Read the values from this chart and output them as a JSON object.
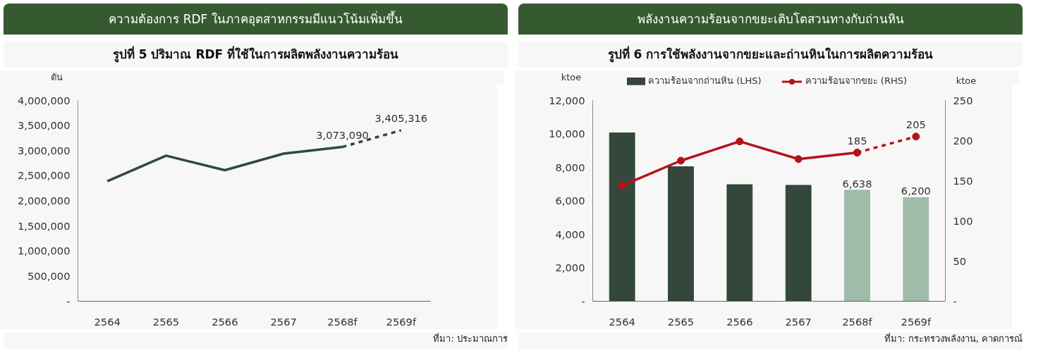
{
  "chart_data": [
    {
      "type": "line",
      "title": "ความต้องการ RDF ในภาคอุตสาหกรรมมีแนวโน้มเพิ่มขึ้น",
      "subtitle": "รูปที่ 5 ปริมาณ RDF ที่ใช้ในการผลิตพลังงานความร้อน",
      "ylabel": "ตัน",
      "categories": [
        "2564",
        "2565",
        "2566",
        "2567",
        "2568f",
        "2569f"
      ],
      "ylim": [
        0,
        4000000
      ],
      "yticks": [
        {
          "value": 0,
          "label": "-"
        },
        {
          "value": 500000,
          "label": "500,000"
        },
        {
          "value": 1000000,
          "label": "1,000,000"
        },
        {
          "value": 1500000,
          "label": "1,500,000"
        },
        {
          "value": 2000000,
          "label": "2,000,000"
        },
        {
          "value": 2500000,
          "label": "2,500,000"
        },
        {
          "value": 3000000,
          "label": "3,000,000"
        },
        {
          "value": 3500000,
          "label": "3,500,000"
        },
        {
          "value": 4000000,
          "label": "4,000,000"
        }
      ],
      "series": [
        {
          "color": "#2f4a3a",
          "line_style": "solid",
          "values": [
            2390000,
            2900000,
            2610000,
            2940000,
            3073090,
            null
          ]
        },
        {
          "color": "#2f4a3a",
          "line_style": "dashed",
          "values": [
            null,
            null,
            null,
            null,
            3073090,
            3405316
          ],
          "value_labels": [
            null,
            null,
            null,
            null,
            "3,073,090",
            "3,405,316"
          ]
        }
      ],
      "grid": false,
      "legend": false,
      "annotations": [
        "ที่มา: ประมาณการ"
      ]
    },
    {
      "type": "bar",
      "title": "พลังงานความร้อนจากขยะเติบโตสวนทางกับถ่านหิน",
      "subtitle": "รูปที่ 6 การใช้พลังงานจากขยะและถ่านหินในการผลิตความร้อน",
      "ylabel": "ktoe",
      "y2label": "ktoe",
      "categories": [
        "2564",
        "2565",
        "2566",
        "2567",
        "2568f",
        "2569f"
      ],
      "ylim": [
        0,
        12000
      ],
      "yticks": [
        {
          "value": 0,
          "label": "-"
        },
        {
          "value": 2000,
          "label": "2,000"
        },
        {
          "value": 4000,
          "label": "4,000"
        },
        {
          "value": 6000,
          "label": "6,000"
        },
        {
          "value": 8000,
          "label": "8,000"
        },
        {
          "value": 10000,
          "label": "10,000"
        },
        {
          "value": 12000,
          "label": "12,000"
        }
      ],
      "y2lim": [
        0,
        250
      ],
      "y2ticks": [
        {
          "value": 0,
          "label": "-"
        },
        50,
        100,
        150,
        200,
        250
      ],
      "series": [
        {
          "name": "ความร้อนจากถ่านหิน (LHS)",
          "colors": [
            "#33473b",
            "#33473b",
            "#33473b",
            "#33473b",
            "#a0bbaa",
            "#a0bbaa"
          ],
          "values": [
            10060,
            8040,
            6970,
            6930,
            6638,
            6200
          ],
          "value_labels": [
            null,
            null,
            null,
            null,
            "6,638",
            "6,200"
          ]
        },
        {
          "type": "line",
          "name": "ความร้อนจากขยะ (RHS)",
          "axis": "y2",
          "color": "#b5121b",
          "line_style": "solid",
          "values": [
            144,
            175,
            199,
            177,
            185,
            null
          ]
        },
        {
          "type": "line",
          "axis": "y2",
          "color": "#b5121b",
          "line_style": "dashed",
          "values": [
            null,
            null,
            null,
            null,
            185,
            205
          ],
          "value_labels": [
            null,
            null,
            null,
            null,
            "185",
            "205"
          ]
        }
      ],
      "marker": "circle",
      "grid": false,
      "legend": "top",
      "annotations": [
        "ที่มา: กระทรวงพลังงาน, คาดการณ์"
      ]
    }
  ]
}
